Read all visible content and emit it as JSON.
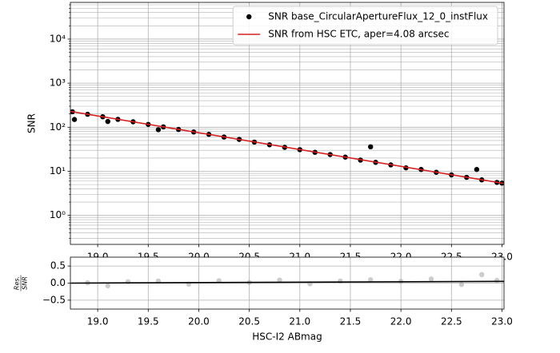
{
  "chart_data": [
    {
      "type": "scatter",
      "ylabel": "SNR",
      "xlim": [
        18.73,
        23.02
      ],
      "ylim": [
        0.22,
        68000
      ],
      "ylog": true,
      "grid": true,
      "minor_grid": true,
      "xticks": [
        {
          "value": 19,
          "label": "19.0"
        },
        19.5,
        {
          "value": 20,
          "label": "20.0"
        },
        20.5,
        {
          "value": 21,
          "label": "21.0"
        },
        21.5,
        {
          "value": 22,
          "label": "22.0"
        },
        22.5,
        {
          "value": 23,
          "label": "23.0"
        }
      ],
      "yticks": [
        {
          "value": 1,
          "label": "10⁰"
        },
        {
          "value": 10,
          "label": "10¹"
        },
        {
          "value": 100,
          "label": "10²"
        },
        {
          "value": 1000,
          "label": "10³"
        },
        {
          "value": 10000,
          "label": "10⁴"
        }
      ],
      "legend": "upper right",
      "series": [
        {
          "name": "SNR base_CircularApertureFlux_12_0_instFlux",
          "type": "scatter",
          "color": "#000000",
          "x": [
            18.75,
            18.77,
            18.9,
            19.05,
            19.1,
            19.2,
            19.35,
            19.5,
            19.6,
            19.65,
            19.8,
            19.95,
            20.1,
            20.25,
            20.4,
            20.55,
            20.7,
            20.85,
            21.0,
            21.15,
            21.3,
            21.45,
            21.6,
            21.7,
            21.75,
            21.9,
            22.05,
            22.2,
            22.35,
            22.5,
            22.65,
            22.75,
            22.8,
            22.95,
            23.0
          ],
          "values": [
            225,
            150,
            197,
            173,
            135,
            151,
            133,
            116,
            88,
            102,
            89,
            78,
            69,
            60,
            53,
            46,
            40,
            35,
            31,
            27,
            24,
            21,
            18,
            36,
            16,
            14,
            12,
            11,
            9.5,
            8.3,
            7.3,
            11,
            6.4,
            5.6,
            5.4
          ]
        },
        {
          "name": "SNR from HSC ETC, aper=4.08 arcsec",
          "type": "line",
          "color": "#d62020",
          "x": [
            18.73,
            23.02
          ],
          "values": [
            229,
            5.3
          ]
        }
      ]
    },
    {
      "type": "scatter",
      "xlabel": "HSC-I2 ABmag",
      "ylabel": {
        "numerator": "Res.",
        "denominator": "SNR"
      },
      "xlim": [
        18.73,
        23.02
      ],
      "ylim": [
        -0.76,
        0.76
      ],
      "ylog": false,
      "grid": true,
      "xticks": [
        {
          "value": 19,
          "label": "19.0"
        },
        19.5,
        {
          "value": 20,
          "label": "20.0"
        },
        20.5,
        {
          "value": 21,
          "label": "21.0"
        },
        21.5,
        {
          "value": 22,
          "label": "22.0"
        },
        22.5,
        {
          "value": 23,
          "label": "23.0"
        }
      ],
      "yticks": [
        0.5,
        {
          "value": 0,
          "label": "0.0"
        },
        {
          "value": -0.5,
          "label": "−0.5"
        }
      ],
      "series": [
        {
          "type": "scatter",
          "color": "#9a9a9a",
          "x": [
            18.9,
            19.1,
            19.3,
            19.6,
            19.9,
            20.2,
            20.5,
            20.8,
            21.1,
            21.4,
            21.7,
            22.0,
            22.3,
            22.6,
            22.8,
            22.95
          ],
          "values": [
            0.01,
            -0.08,
            0.04,
            0.06,
            -0.03,
            0.07,
            0.02,
            0.09,
            -0.02,
            0.06,
            0.1,
            0.05,
            0.12,
            -0.04,
            0.25,
            0.08
          ]
        },
        {
          "type": "line",
          "color": "#000000",
          "x": [
            18.73,
            23.02
          ],
          "values": [
            0.0,
            0.05
          ]
        }
      ]
    }
  ]
}
